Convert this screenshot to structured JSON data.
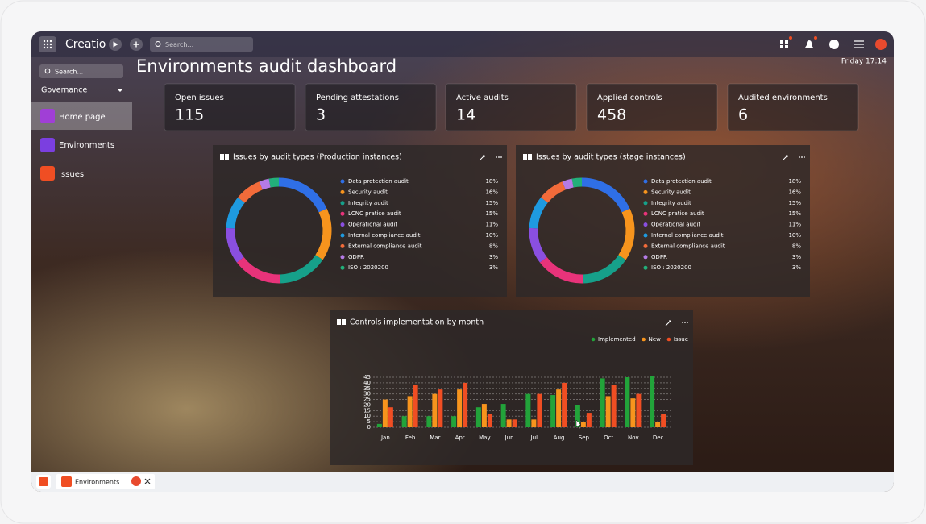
{
  "header": {
    "brand": "Creatio",
    "search": "Search...",
    "time": "Friday 17:14"
  },
  "sidebar": {
    "search": "Search...",
    "section": "Governance",
    "items": [
      "Home page",
      "Environments",
      "Issues"
    ]
  },
  "title": "Environments audit dashboard",
  "metrics": [
    {
      "label": "Open issues",
      "value": 115
    },
    {
      "label": "Pending attestations",
      "value": 3
    },
    {
      "label": "Active audits",
      "value": 14
    },
    {
      "label": "Applied controls",
      "value": 458
    },
    {
      "label": "Audited environments",
      "value": 6
    }
  ],
  "charts": [
    {
      "type": "pie",
      "title": "Issues by audit types (Production instances)",
      "categories": [
        "Data protection audit",
        "Security audit",
        "Integrity audit",
        "LCNC pratice audit",
        "Operational audit",
        "Internal compliance audit",
        "External compliance audit",
        "GDPR",
        "ISO : 2020200"
      ],
      "values": [
        18,
        16,
        15,
        15,
        11,
        10,
        8,
        3,
        3
      ],
      "value_labels": [
        "18%",
        "16%",
        "15%",
        "15%",
        "11%",
        "10%",
        "8%",
        "3%",
        "3%"
      ],
      "colors": [
        "#2f6fe6",
        "#f7941d",
        "#16a08a",
        "#e8337a",
        "#8a4fe0",
        "#1e9ae0",
        "#f26b3a",
        "#b57be6",
        "#22b07a"
      ]
    },
    {
      "type": "pie",
      "title": "Issues by audit types (stage instances)",
      "categories": [
        "Data protection audit",
        "Security audit",
        "Integrity audit",
        "LCNC pratice audit",
        "Operational audit",
        "Internal compliance audit",
        "External compliance audit",
        "GDPR",
        "ISO : 2020200"
      ],
      "values": [
        18,
        16,
        15,
        15,
        11,
        10,
        8,
        3,
        3
      ],
      "value_labels": [
        "18%",
        "16%",
        "15%",
        "15%",
        "11%",
        "10%",
        "8%",
        "3%",
        "3%"
      ],
      "colors": [
        "#2f6fe6",
        "#f7941d",
        "#16a08a",
        "#e8337a",
        "#8a4fe0",
        "#1e9ae0",
        "#f26b3a",
        "#b57be6",
        "#22b07a"
      ]
    },
    {
      "type": "bar",
      "title": "Controls implementation by month",
      "categories": [
        "Jan",
        "Feb",
        "Mar",
        "Apr",
        "May",
        "Jun",
        "Jul",
        "Aug",
        "Sep",
        "Oct",
        "Nov",
        "Dec"
      ],
      "series": [
        {
          "name": "Implemented",
          "color": "#22a33a",
          "values": [
            3,
            10,
            10,
            10,
            18,
            21,
            30,
            29,
            20,
            44,
            45,
            46
          ]
        },
        {
          "name": "New",
          "color": "#f7941d",
          "values": [
            25,
            28,
            30,
            34,
            21,
            7,
            7,
            34,
            5,
            28,
            26,
            5
          ]
        },
        {
          "name": "Issue",
          "color": "#f04e23",
          "values": [
            18,
            38,
            34,
            40,
            12,
            7,
            30,
            40,
            13,
            38,
            30,
            12
          ]
        }
      ],
      "ylim": [
        0,
        48
      ],
      "yticks": [
        0,
        5,
        10,
        15,
        20,
        25,
        30,
        35,
        40,
        45
      ],
      "grid": true,
      "legend": "top-right"
    }
  ],
  "taskbar": {
    "tab": "Environments"
  }
}
